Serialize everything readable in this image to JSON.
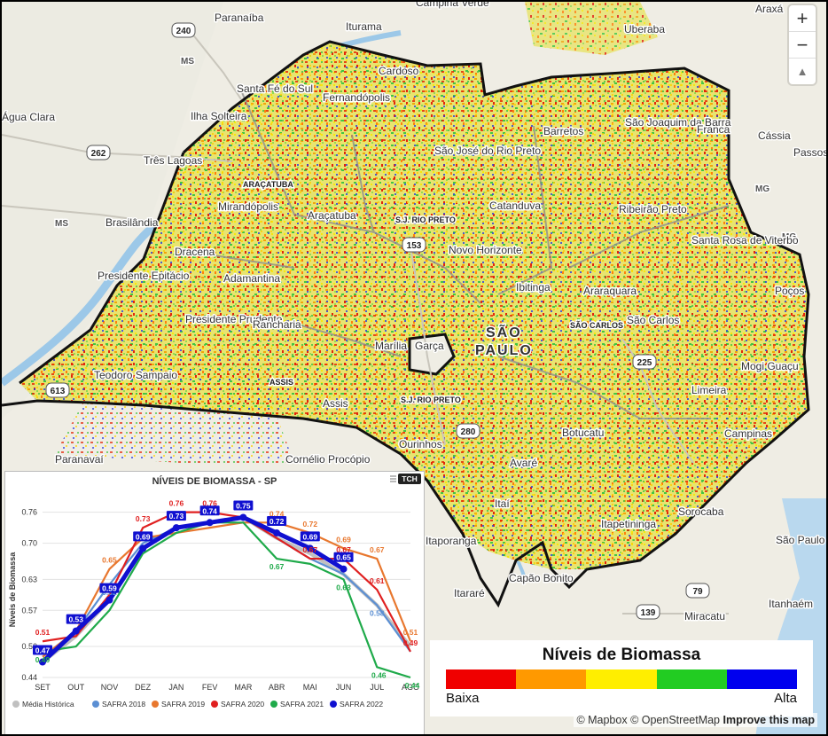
{
  "map": {
    "cities": [
      {
        "name": "Paranaíba"
      },
      {
        "name": "Iturama"
      },
      {
        "name": "Campina Verde"
      },
      {
        "name": "Uberaba"
      },
      {
        "name": "Araxá"
      },
      {
        "name": "Cardoso"
      },
      {
        "name": "Santa Fé do Sul"
      },
      {
        "name": "Fernandópolis"
      },
      {
        "name": "Água Clara"
      },
      {
        "name": "Ilha Solteira"
      },
      {
        "name": "São José do Rio Preto"
      },
      {
        "name": "Barretos"
      },
      {
        "name": "São Joaquim da Barra"
      },
      {
        "name": "Franca"
      },
      {
        "name": "Cássia"
      },
      {
        "name": "Passos"
      },
      {
        "name": "Três Lagoas"
      },
      {
        "name": "Mirandópolis"
      },
      {
        "name": "Araçatuba"
      },
      {
        "name": "Catanduva"
      },
      {
        "name": "Ribeirão Preto"
      },
      {
        "name": "Brasilândia"
      },
      {
        "name": "Dracena"
      },
      {
        "name": "Novo Horizonte"
      },
      {
        "name": "Santa Rosa de Viterbo"
      },
      {
        "name": "Adamantina"
      },
      {
        "name": "Presidente Epitácio"
      },
      {
        "name": "Ibitinga"
      },
      {
        "name": "Araraquara"
      },
      {
        "name": "Presidente Prudente"
      },
      {
        "name": "São Carlos"
      },
      {
        "name": "Rancharia"
      },
      {
        "name": "Marília"
      },
      {
        "name": "Garça"
      },
      {
        "name": "Poços"
      },
      {
        "name": "Mogi Guaçu"
      },
      {
        "name": "Teodoro Sampaio"
      },
      {
        "name": "Assis"
      },
      {
        "name": "Limeira"
      },
      {
        "name": "Botucatu"
      },
      {
        "name": "Campinas"
      },
      {
        "name": "Ourinhos"
      },
      {
        "name": "Paranavaí"
      },
      {
        "name": "Cornélio Procópio"
      },
      {
        "name": "Avaré"
      },
      {
        "name": "Itaí"
      },
      {
        "name": "Sorocaba"
      },
      {
        "name": "Itapetininga"
      },
      {
        "name": "São Paulo"
      },
      {
        "name": "Itaporanga"
      },
      {
        "name": "Itararé"
      },
      {
        "name": "Capão Bonito"
      },
      {
        "name": "Miracatu"
      },
      {
        "name": "Itanhaém"
      }
    ],
    "regions": [
      "ARAÇATUBA",
      "S.J. RIO PRETO",
      "SÃO CARLOS",
      "ASSIS",
      "S.J. RIO PRETO"
    ],
    "state_label": [
      "SÃO",
      "PAULO"
    ],
    "state_abbrevs": [
      "MS",
      "MS",
      "MG",
      "MG"
    ],
    "road_shields": [
      "240",
      "262",
      "153",
      "613",
      "225",
      "280",
      "79",
      "139"
    ]
  },
  "zoom": {
    "zoom_in": "+",
    "zoom_out": "−",
    "compass": "▲"
  },
  "legend": {
    "title": "Níveis de Biomassa",
    "low": "Baixa",
    "high": "Alta",
    "colors": [
      "#f00000",
      "#ff9900",
      "#ffee00",
      "#22cc22",
      "#0000ee"
    ]
  },
  "attribution": {
    "mapbox": "© Mapbox",
    "osm": "© OpenStreetMap",
    "improve": "Improve this map"
  },
  "chart_data": {
    "type": "line",
    "title": "NÍVEIS DE BIOMASSA - SP",
    "badge": "TCH",
    "ylabel": "Níveis de Biomassa",
    "xlabel": "",
    "categories": [
      "SET",
      "OUT",
      "NOV",
      "DEZ",
      "JAN",
      "FEV",
      "MAR",
      "ABR",
      "MAI",
      "JUN",
      "JUL",
      "AGO"
    ],
    "yticks": [
      0.44,
      0.5,
      0.57,
      0.63,
      0.7,
      0.76
    ],
    "ylim": [
      0.44,
      0.78
    ],
    "legend_position": "bottom",
    "series": [
      {
        "name": "Média Histórica",
        "color": "#c0c0c0",
        "values": [
          0.47,
          0.52,
          0.59,
          0.69,
          0.73,
          0.74,
          0.75,
          0.71,
          0.68,
          0.64,
          0.58,
          0.5
        ],
        "labels": []
      },
      {
        "name": "SAFRA 2018",
        "color": "#5b8fd3",
        "values": [
          0.48,
          0.53,
          0.62,
          0.7,
          0.73,
          0.74,
          0.75,
          0.71,
          0.67,
          0.64,
          0.58,
          0.49
        ],
        "labels": [
          null,
          null,
          0.62,
          null,
          null,
          null,
          null,
          null,
          null,
          null,
          0.58,
          null
        ]
      },
      {
        "name": "SAFRA 2019",
        "color": "#e8772e",
        "values": [
          0.48,
          0.53,
          0.65,
          0.71,
          0.72,
          0.73,
          0.74,
          0.74,
          0.72,
          0.69,
          0.67,
          0.51
        ],
        "labels": [
          null,
          null,
          0.65,
          null,
          null,
          null,
          null,
          0.74,
          0.72,
          0.69,
          0.67,
          0.51
        ]
      },
      {
        "name": "SAFRA 2020",
        "color": "#e02020",
        "values": [
          0.51,
          0.52,
          0.6,
          0.73,
          0.76,
          0.76,
          0.75,
          0.71,
          0.67,
          0.67,
          0.61,
          0.49
        ],
        "labels": [
          0.51,
          null,
          0.6,
          0.73,
          0.76,
          0.76,
          null,
          null,
          0.67,
          0.67,
          0.61,
          0.49
        ]
      },
      {
        "name": "SAFRA 2021",
        "color": "#1faa4a",
        "values": [
          0.49,
          0.5,
          0.57,
          0.68,
          0.72,
          0.74,
          0.74,
          0.67,
          0.66,
          0.63,
          0.46,
          0.44
        ],
        "labels": [
          0.49,
          null,
          null,
          null,
          null,
          null,
          null,
          0.67,
          null,
          0.63,
          0.46,
          0.44
        ]
      },
      {
        "name": "SAFRA 2022",
        "color": "#1010d0",
        "values": [
          0.47,
          0.53,
          0.59,
          0.69,
          0.73,
          0.74,
          0.75,
          0.72,
          0.69,
          0.65,
          null,
          null
        ],
        "labels": [
          0.47,
          0.53,
          0.59,
          0.69,
          0.73,
          0.74,
          0.75,
          0.72,
          0.69,
          0.65,
          null,
          null
        ]
      }
    ]
  }
}
